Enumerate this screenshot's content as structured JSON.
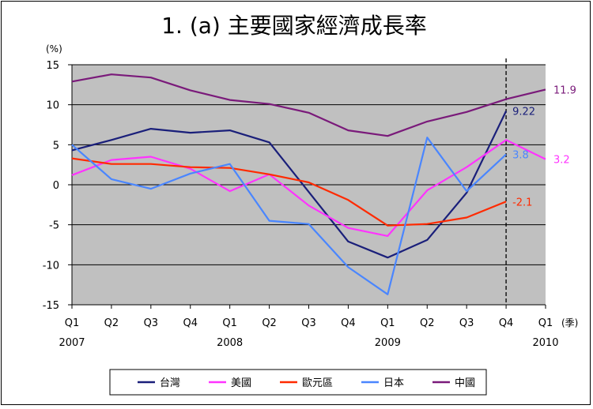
{
  "chart_data": {
    "type": "line",
    "title": "1. (a) 主要國家經濟成長率",
    "ylabel": "(%)",
    "xlabel_suffix": "(季)",
    "ylim": [
      -15,
      15
    ],
    "yticks": [
      -15,
      -10,
      -5,
      0,
      5,
      10,
      15
    ],
    "categories": [
      "Q1",
      "Q2",
      "Q3",
      "Q4",
      "Q1",
      "Q2",
      "Q3",
      "Q4",
      "Q1",
      "Q2",
      "Q3",
      "Q4",
      "Q1"
    ],
    "years": [
      {
        "index": 0,
        "label": "2007"
      },
      {
        "index": 4,
        "label": "2008"
      },
      {
        "index": 8,
        "label": "2009"
      },
      {
        "index": 12,
        "label": "2010"
      }
    ],
    "grid": "horizontal",
    "plot_background": "#c0c0c0",
    "forecast_divider_index": 11,
    "legend_position": "bottom",
    "series": [
      {
        "name": "台灣",
        "color": "#1a1f7a",
        "values": [
          4.3,
          5.6,
          7.0,
          6.5,
          6.8,
          5.3,
          -0.9,
          -7.1,
          -9.1,
          -6.9,
          -1.0,
          9.22,
          null
        ],
        "end_label": "9.22",
        "end_index": 11
      },
      {
        "name": "美國",
        "color": "#ff33ff",
        "values": [
          1.2,
          3.1,
          3.5,
          2.0,
          -0.8,
          1.3,
          -2.6,
          -5.4,
          -6.4,
          -0.7,
          2.2,
          5.6,
          3.2
        ],
        "end_label": "3.2",
        "end_index": 12
      },
      {
        "name": "歐元區",
        "color": "#ff2a00",
        "values": [
          3.3,
          2.6,
          2.6,
          2.2,
          2.1,
          1.3,
          0.3,
          -1.9,
          -5.1,
          -4.9,
          -4.1,
          -2.1,
          null
        ],
        "end_label": "-2.1",
        "end_index": 11
      },
      {
        "name": "日本",
        "color": "#4a86ff",
        "values": [
          5.0,
          0.7,
          -0.5,
          1.4,
          2.6,
          -4.5,
          -4.9,
          -10.3,
          -13.7,
          5.9,
          -0.8,
          3.8,
          null
        ],
        "end_label": "3.8",
        "end_index": 11
      },
      {
        "name": "中國",
        "color": "#7a1a7a",
        "values": [
          12.9,
          13.8,
          13.4,
          11.8,
          10.6,
          10.1,
          9.0,
          6.8,
          6.1,
          7.9,
          9.1,
          10.7,
          11.9
        ],
        "end_label": "11.9",
        "end_index": 12
      }
    ]
  }
}
